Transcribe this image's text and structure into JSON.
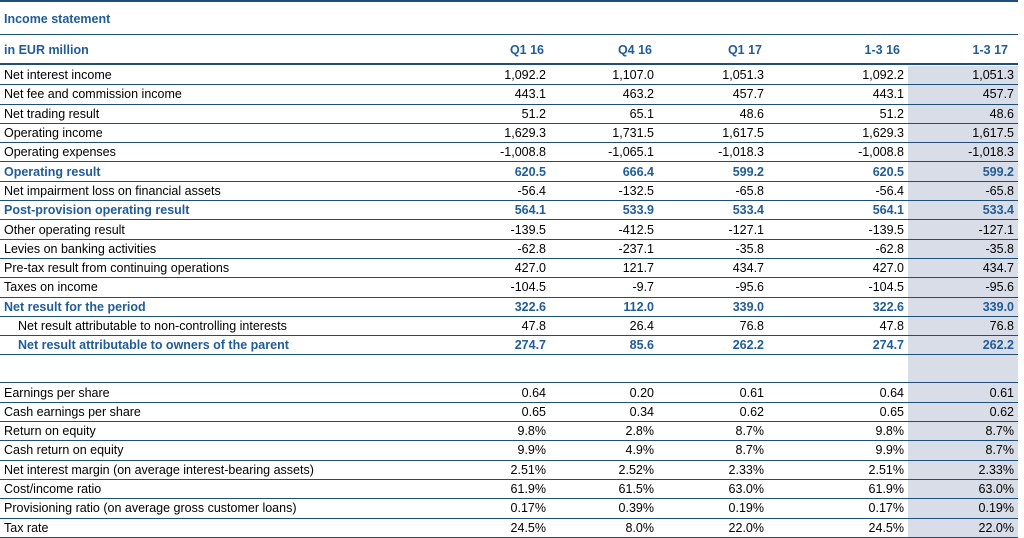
{
  "title": "Income statement",
  "header": {
    "label": "in EUR million",
    "cols": [
      "Q1 16",
      "Q4 16",
      "Q1 17",
      "1-3 16",
      "1-3 17"
    ]
  },
  "rows": [
    {
      "label": "Net interest income",
      "vals": [
        "1,092.2",
        "1,107.0",
        "1,051.3",
        "1,092.2",
        "1,051.3"
      ]
    },
    {
      "label": "Net fee and commission income",
      "vals": [
        "443.1",
        "463.2",
        "457.7",
        "443.1",
        "457.7"
      ]
    },
    {
      "label": "Net trading result",
      "vals": [
        "51.2",
        "65.1",
        "48.6",
        "51.2",
        "48.6"
      ]
    },
    {
      "label": "Operating income",
      "vals": [
        "1,629.3",
        "1,731.5",
        "1,617.5",
        "1,629.3",
        "1,617.5"
      ]
    },
    {
      "label": "Operating expenses",
      "vals": [
        "-1,008.8",
        "-1,065.1",
        "-1,018.3",
        "-1,008.8",
        "-1,018.3"
      ]
    },
    {
      "label": "Operating result",
      "vals": [
        "620.5",
        "666.4",
        "599.2",
        "620.5",
        "599.2"
      ]
    },
    {
      "label": "Net impairment loss on financial assets",
      "vals": [
        "-56.4",
        "-132.5",
        "-65.8",
        "-56.4",
        "-65.8"
      ]
    },
    {
      "label": "Post-provision operating result",
      "vals": [
        "564.1",
        "533.9",
        "533.4",
        "564.1",
        "533.4"
      ]
    },
    {
      "label": "Other operating result",
      "vals": [
        "-139.5",
        "-412.5",
        "-127.1",
        "-139.5",
        "-127.1"
      ]
    },
    {
      "label": "Levies on banking activities",
      "vals": [
        "-62.8",
        "-237.1",
        "-35.8",
        "-62.8",
        "-35.8"
      ]
    },
    {
      "label": "Pre-tax result from continuing operations",
      "vals": [
        "427.0",
        "121.7",
        "434.7",
        "427.0",
        "434.7"
      ]
    },
    {
      "label": "Taxes on income",
      "vals": [
        "-104.5",
        "-9.7",
        "-95.6",
        "-104.5",
        "-95.6"
      ]
    },
    {
      "label": "Net result for the period",
      "vals": [
        "322.6",
        "112.0",
        "339.0",
        "322.6",
        "339.0"
      ]
    },
    {
      "label": "Net result attributable to non-controlling interests",
      "vals": [
        "47.8",
        "26.4",
        "76.8",
        "47.8",
        "76.8"
      ]
    },
    {
      "label": "Net result attributable to owners of the parent",
      "vals": [
        "274.7",
        "85.6",
        "262.2",
        "274.7",
        "262.2"
      ]
    },
    {
      "label": "",
      "vals": [
        "",
        "",
        "",
        "",
        ""
      ]
    },
    {
      "label": "Earnings per share",
      "vals": [
        "0.64",
        "0.20",
        "0.61",
        "0.64",
        "0.61"
      ]
    },
    {
      "label": "Cash earnings per share",
      "vals": [
        "0.65",
        "0.34",
        "0.62",
        "0.65",
        "0.62"
      ]
    },
    {
      "label": "Return on equity",
      "vals": [
        "9.8%",
        "2.8%",
        "8.7%",
        "9.8%",
        "8.7%"
      ]
    },
    {
      "label": "Cash return on equity",
      "vals": [
        "9.9%",
        "4.9%",
        "8.7%",
        "9.9%",
        "8.7%"
      ]
    },
    {
      "label": "Net interest margin (on average interest-bearing assets)",
      "vals": [
        "2.51%",
        "2.52%",
        "2.33%",
        "2.51%",
        "2.33%"
      ]
    },
    {
      "label": "Cost/income ratio",
      "vals": [
        "61.9%",
        "61.5%",
        "63.0%",
        "61.9%",
        "63.0%"
      ]
    },
    {
      "label": "Provisioning ratio (on average gross customer loans)",
      "vals": [
        "0.17%",
        "0.39%",
        "0.19%",
        "0.17%",
        "0.19%"
      ]
    },
    {
      "label": "Tax rate",
      "vals": [
        "24.5%",
        "8.0%",
        "22.0%",
        "24.5%",
        "22.0%"
      ]
    }
  ]
}
